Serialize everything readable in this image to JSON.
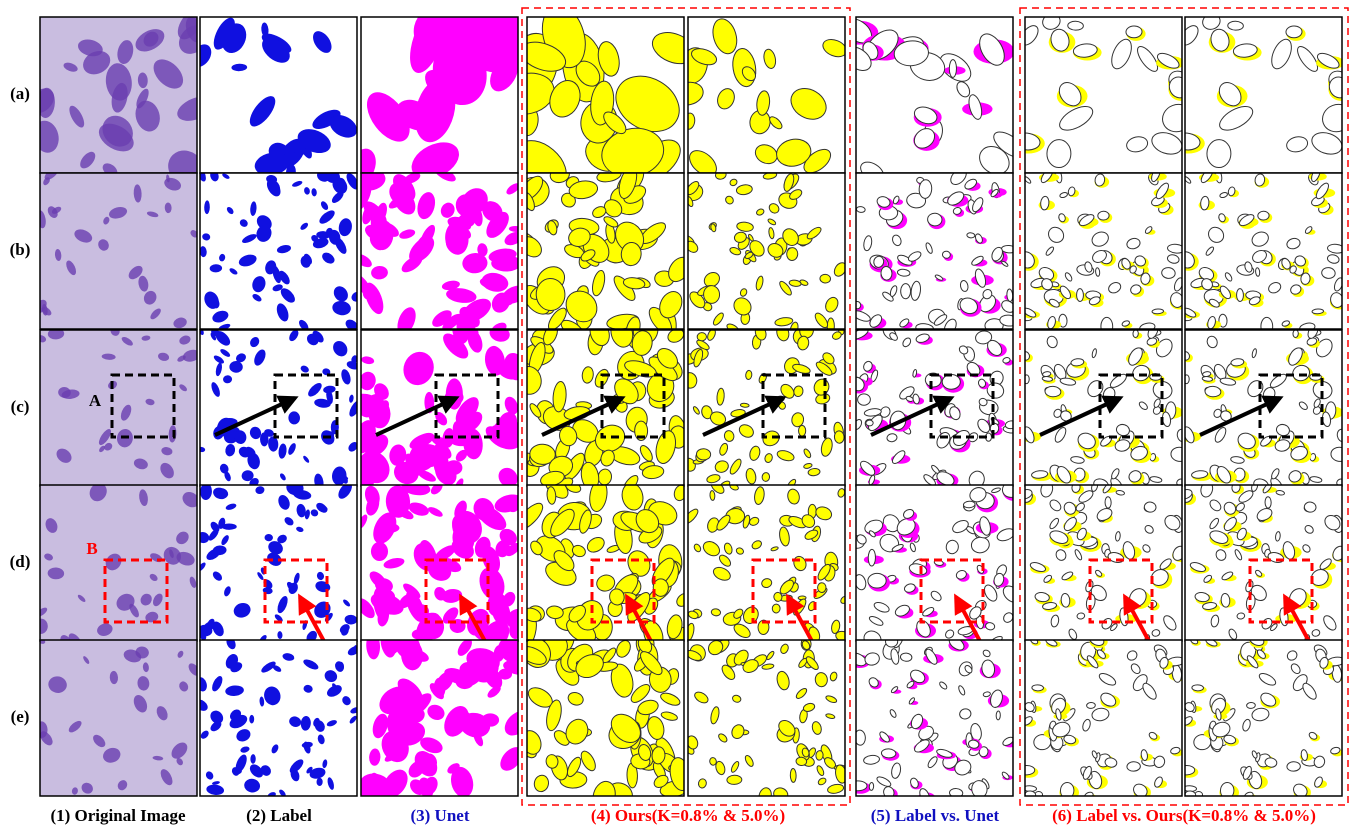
{
  "figure": {
    "row_labels": [
      "(a)",
      "(b)",
      "(c)",
      "(d)",
      "(e)"
    ],
    "column_labels": [
      "(1) Original Image",
      "(2) Label",
      "(3) Unet",
      "(4) Ours(K=0.8% & 5.0%)",
      "(5) Label vs. Unet",
      "(6) Label vs. Ours(K=0.8% & 5.0%)"
    ],
    "markers": [
      "A",
      "B"
    ]
  }
}
